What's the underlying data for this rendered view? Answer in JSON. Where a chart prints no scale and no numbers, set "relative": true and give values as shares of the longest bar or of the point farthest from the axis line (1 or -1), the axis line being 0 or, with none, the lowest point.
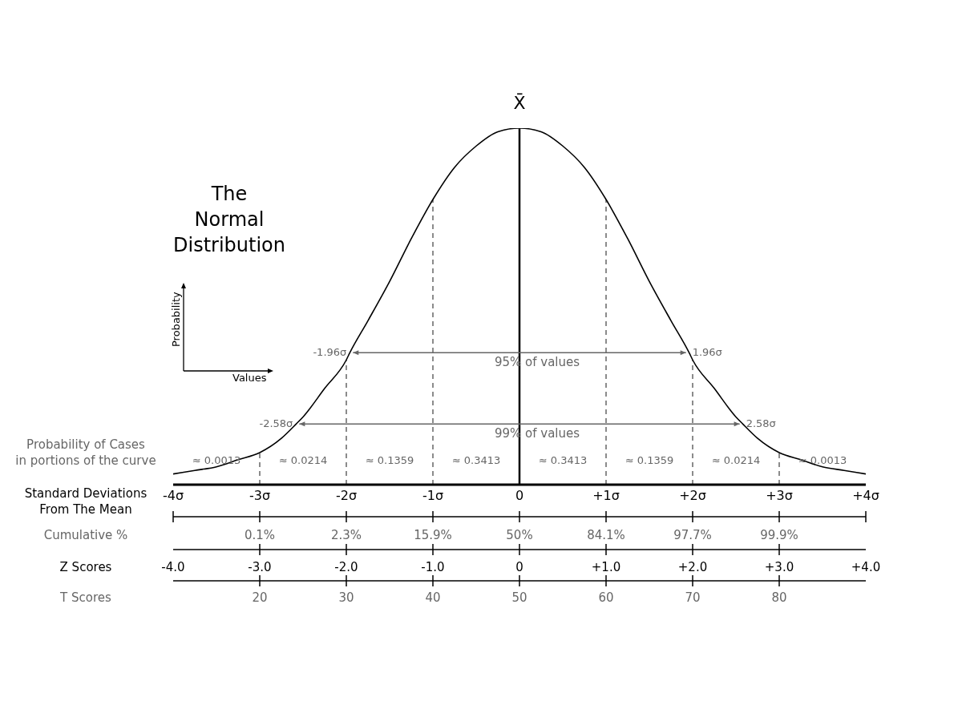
{
  "chart_data": {
    "type": "line",
    "title": "The\nNormal\nDistribution",
    "relative": true,
    "marker": "none",
    "line_style": "solid",
    "x": [
      -4,
      -3.75,
      -3.5,
      -3.25,
      -3,
      -2.75,
      -2.58,
      -2.5,
      -2.25,
      -2,
      -1.96,
      -1.75,
      -1.5,
      -1.25,
      -1,
      -0.75,
      -0.5,
      -0.25,
      0,
      0.25,
      0.5,
      0.75,
      1,
      1.25,
      1.5,
      1.75,
      1.96,
      2,
      2.25,
      2.5,
      2.58,
      2.75,
      3,
      3.25,
      3.5,
      3.75,
      4
    ],
    "series": [
      {
        "color": "#000000",
        "values": [
          0.03,
          0.04,
          0.05,
          0.07,
          0.09,
          0.13,
          0.17,
          0.19,
          0.27,
          0.35,
          0.37,
          0.46,
          0.57,
          0.69,
          0.8,
          0.89,
          0.95,
          0.99,
          1,
          0.99,
          0.95,
          0.89,
          0.8,
          0.69,
          0.57,
          0.46,
          0.37,
          0.35,
          0.27,
          0.19,
          0.17,
          0.13,
          0.09,
          0.07,
          0.05,
          0.04,
          0.03
        ]
      }
    ],
    "xlim": [
      -4,
      4
    ],
    "xticks": [
      {
        "value": -4,
        "label": "-4σ"
      },
      {
        "value": -3,
        "label": "-3σ"
      },
      {
        "value": -2,
        "label": "-2σ"
      },
      {
        "value": -1,
        "label": "-1σ"
      },
      0,
      {
        "value": 1,
        "label": "+1σ"
      },
      {
        "value": 2,
        "label": "+2σ"
      },
      {
        "value": 3,
        "label": "+3σ"
      },
      {
        "value": 4,
        "label": "+4σ"
      }
    ],
    "xlabel": "Standard Deviations\nFrom The Mean",
    "x2lim": [
      10,
      90
    ],
    "x2ticks": [
      20,
      30,
      40,
      50,
      60,
      70,
      80
    ],
    "x2label": "T Scores",
    "ref_lines": [
      {
        "axis": "x",
        "value": 0,
        "label": "X̄",
        "color": "#000000",
        "line_style": "solid"
      },
      {
        "axis": "x",
        "value": -3,
        "color": "#666666",
        "line_style": "dashed"
      },
      {
        "axis": "x",
        "value": -2,
        "color": "#666666",
        "line_style": "dashed"
      },
      {
        "axis": "x",
        "value": -1,
        "color": "#666666",
        "line_style": "dashed"
      },
      {
        "axis": "x",
        "value": 1,
        "color": "#666666",
        "line_style": "dashed"
      },
      {
        "axis": "x",
        "value": 2,
        "color": "#666666",
        "line_style": "dashed"
      },
      {
        "axis": "x",
        "value": 3,
        "color": "#666666",
        "line_style": "dashed"
      }
    ],
    "annotations": [
      "Probability of Cases\nin portions of the curve",
      "Probability",
      "Values",
      "95% of values",
      "99% of values",
      "Cumulative %",
      "0.1%",
      "2.3%",
      "15.9%",
      "50%",
      "84.1%",
      "97.7%",
      "99.9%",
      "Z Scores",
      "-4.0",
      "-3.0",
      "-2.0",
      "-1.0",
      "0",
      "+1.0",
      "+2.0",
      "+3.0",
      "+4.0",
      "≈ 0.0013",
      "≈ 0.0214",
      "≈ 0.1359",
      "≈ 0.3413",
      "≈ 0.3413",
      "≈ 0.1359",
      "≈ 0.0214",
      "≈ 0.0013",
      {
        "text": "-1.96σ",
        "x": -1.96,
        "y": 0.37
      },
      {
        "text": "1.96σ",
        "x": 1.96,
        "y": 0.37
      },
      {
        "text": "-2.58σ",
        "x": -2.58,
        "y": 0.17
      },
      {
        "text": "2.58σ",
        "x": 2.58,
        "y": 0.17
      }
    ]
  }
}
